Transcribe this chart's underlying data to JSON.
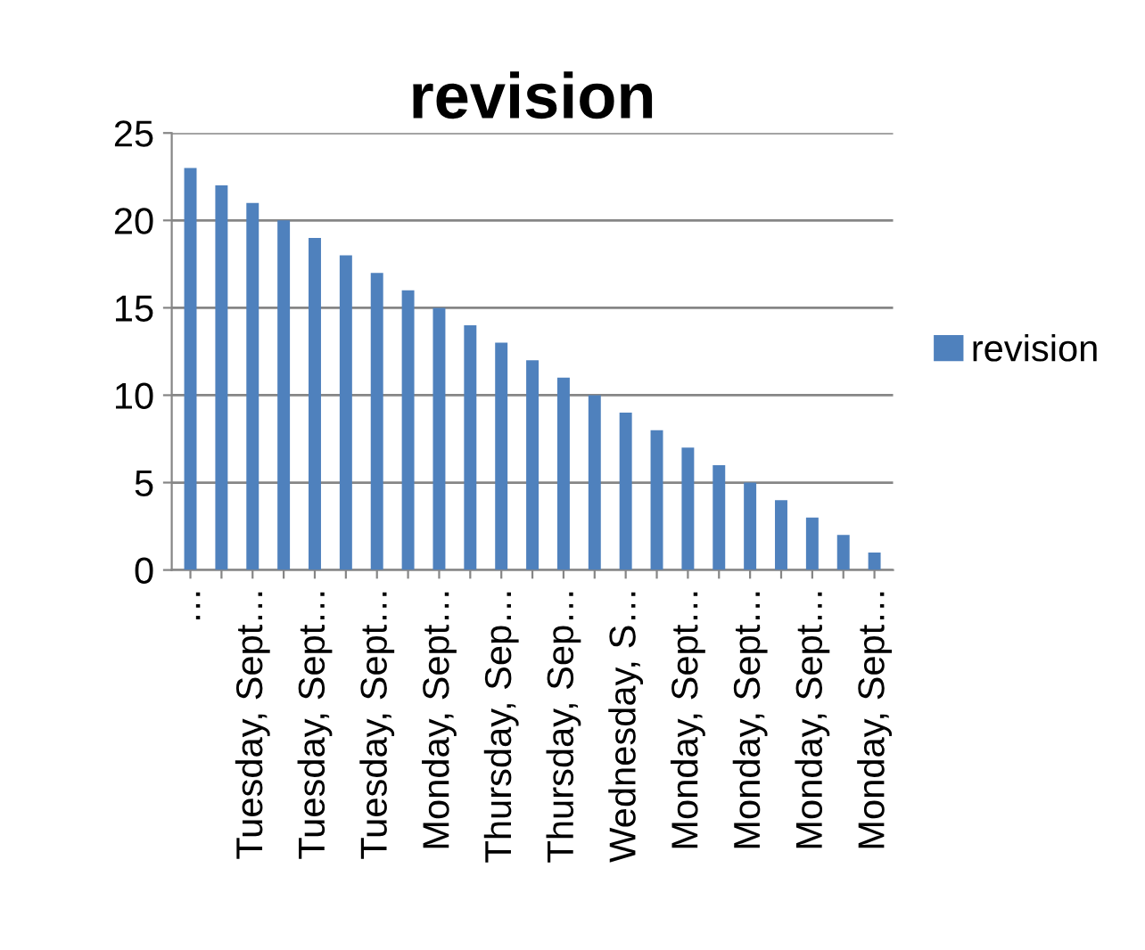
{
  "chart_data": {
    "type": "bar",
    "title": "revision",
    "categories": [
      "…",
      null,
      "Tuesday, Sept…",
      null,
      "Tuesday, Sept…",
      null,
      "Tuesday, Sept…",
      null,
      "Monday, Sept…",
      null,
      "Thursday, Sep…",
      null,
      "Thursday, Sep…",
      null,
      "Wednesday, S…",
      null,
      "Monday, Sept…",
      null,
      "Monday, Sept…",
      null,
      "Monday, Sept…",
      null,
      "Monday, Sept…"
    ],
    "series": [
      {
        "name": "revision",
        "color": "#4f81bd",
        "values": [
          23,
          22,
          21,
          20,
          19,
          18,
          17,
          16,
          15,
          14,
          13,
          12,
          11,
          10,
          9,
          8,
          7,
          6,
          5,
          4,
          3,
          2,
          1
        ]
      }
    ],
    "ylim": [
      0,
      25
    ],
    "yticks": [
      0,
      5,
      10,
      15,
      20,
      25
    ],
    "grid": "y",
    "legend": "right"
  }
}
